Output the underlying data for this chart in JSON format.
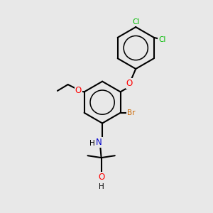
{
  "bg_color": "#e8e8e8",
  "atom_colors": {
    "O": "#ff0000",
    "N": "#0000cc",
    "Br": "#cc6600",
    "Cl": "#00bb00",
    "C": "#000000",
    "H": "#000000"
  },
  "bond_color": "#000000",
  "bond_lw": 1.5
}
